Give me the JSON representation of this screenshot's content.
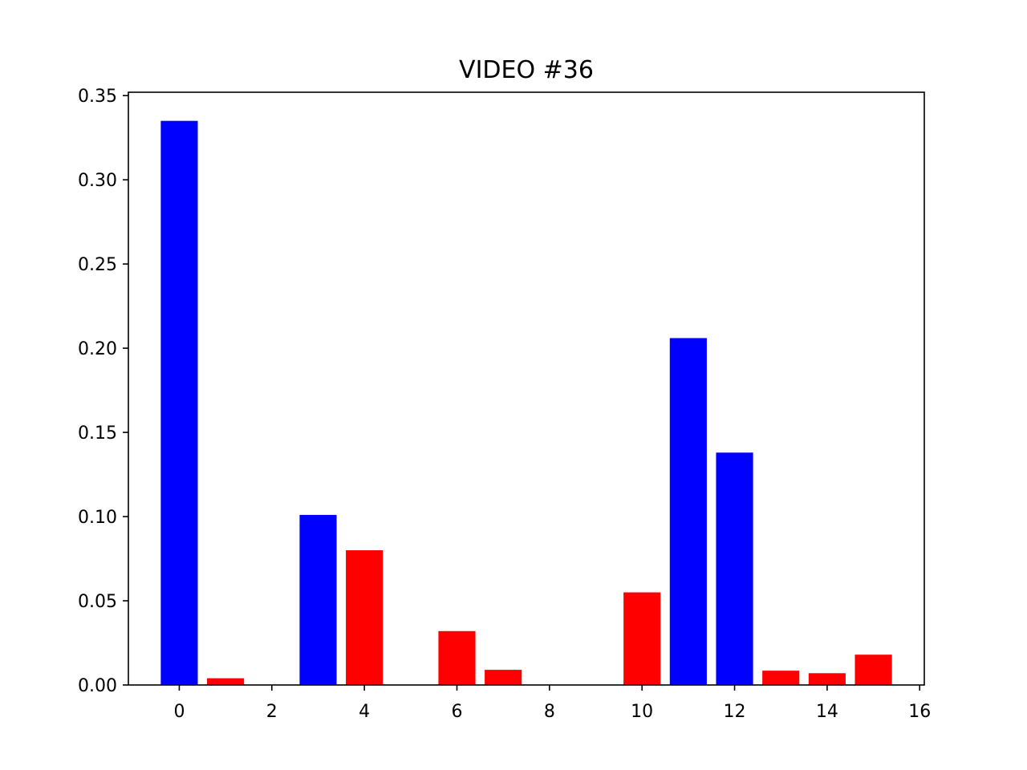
{
  "chart_data": {
    "type": "bar",
    "title": "VIDEO #36",
    "xlabel": "",
    "ylabel": "",
    "x": [
      0,
      1,
      2,
      3,
      4,
      5,
      6,
      7,
      8,
      9,
      10,
      11,
      12,
      13,
      14,
      15
    ],
    "values": [
      0.335,
      0.004,
      0.0,
      0.101,
      0.08,
      0.0,
      0.032,
      0.009,
      0.0,
      0.0,
      0.055,
      0.206,
      0.138,
      0.0085,
      0.007,
      0.018
    ],
    "bar_colors": [
      "#0000ff",
      "#ff0000",
      "#ff0000",
      "#0000ff",
      "#ff0000",
      "#ff0000",
      "#ff0000",
      "#ff0000",
      "#ff0000",
      "#ff0000",
      "#ff0000",
      "#0000ff",
      "#0000ff",
      "#ff0000",
      "#ff0000",
      "#ff0000"
    ],
    "xlim": [
      -1.1,
      16.1
    ],
    "ylim": [
      0,
      0.352
    ],
    "xticks": [
      0,
      2,
      4,
      6,
      8,
      10,
      12,
      14,
      16
    ],
    "xtick_labels": [
      "0",
      "2",
      "4",
      "6",
      "8",
      "10",
      "12",
      "14",
      "16"
    ],
    "yticks": [
      0.0,
      0.05,
      0.1,
      0.15,
      0.2,
      0.25,
      0.3,
      0.35
    ],
    "ytick_labels": [
      "0.00",
      "0.05",
      "0.10",
      "0.15",
      "0.20",
      "0.25",
      "0.30",
      "0.35"
    ],
    "grid": false,
    "legend": "none"
  }
}
